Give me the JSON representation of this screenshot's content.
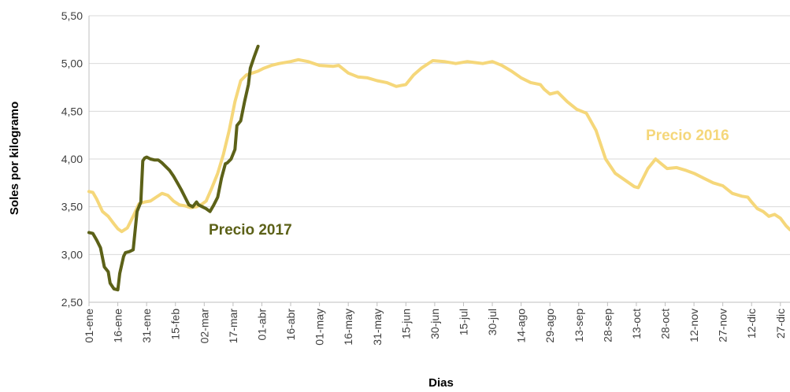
{
  "chart_data": {
    "type": "line",
    "title": "",
    "xlabel": "Dias",
    "ylabel": "Soles por kilogramo",
    "ylim": [
      2.5,
      5.5
    ],
    "yticks": [
      2.5,
      3.0,
      3.5,
      4.0,
      4.5,
      5.0,
      5.5
    ],
    "ytick_labels": [
      "2,50",
      "3,00",
      "3,50",
      "4,00",
      "4,50",
      "5,00",
      "5,50"
    ],
    "xlim_day": [
      1,
      366
    ],
    "xtick_day": [
      1,
      16,
      31,
      46,
      61,
      76,
      91,
      106,
      121,
      136,
      151,
      166,
      181,
      196,
      211,
      226,
      241,
      256,
      271,
      286,
      301,
      316,
      331,
      346,
      361
    ],
    "xtick_labels": [
      "01-ene",
      "16-ene",
      "31-ene",
      "15-feb",
      "02-mar",
      "17-mar",
      "01-abr",
      "16-abr",
      "01-may",
      "16-may",
      "31-may",
      "15-jun",
      "30-jun",
      "15-jul",
      "30-jul",
      "14-ago",
      "29-ago",
      "13-sep",
      "28-sep",
      "13-oct",
      "28-oct",
      "12-nov",
      "27-nov",
      "12-dic",
      "27-dic"
    ],
    "grid": "horizontal",
    "series": [
      {
        "name": "Precio 2016",
        "color": "#F5D77A",
        "x": [
          1,
          3,
          5,
          8,
          11,
          14,
          16,
          18,
          21,
          24,
          27,
          30,
          33,
          36,
          39,
          42,
          45,
          48,
          51,
          54,
          57,
          60,
          62,
          65,
          68,
          71,
          74,
          77,
          80,
          83,
          86,
          89,
          92,
          96,
          100,
          106,
          110,
          115,
          121,
          128,
          131,
          136,
          141,
          146,
          151,
          156,
          161,
          166,
          170,
          174,
          180,
          186,
          192,
          198,
          202,
          206,
          211,
          216,
          221,
          226,
          231,
          236,
          238,
          241,
          245,
          250,
          255,
          260,
          265,
          270,
          275,
          280,
          285,
          287,
          292,
          296,
          299,
          302,
          307,
          312,
          316,
          321,
          326,
          331,
          336,
          341,
          344,
          346,
          349,
          352,
          355,
          358,
          361,
          364,
          366
        ],
        "y": [
          3.66,
          3.65,
          3.58,
          3.45,
          3.4,
          3.32,
          3.27,
          3.24,
          3.28,
          3.4,
          3.53,
          3.55,
          3.56,
          3.6,
          3.64,
          3.62,
          3.56,
          3.52,
          3.51,
          3.49,
          3.5,
          3.53,
          3.56,
          3.7,
          3.85,
          4.05,
          4.3,
          4.6,
          4.82,
          4.88,
          4.9,
          4.92,
          4.95,
          4.98,
          5.0,
          5.02,
          5.04,
          5.02,
          4.98,
          4.97,
          4.98,
          4.9,
          4.86,
          4.85,
          4.82,
          4.8,
          4.76,
          4.78,
          4.88,
          4.95,
          5.03,
          5.02,
          5.0,
          5.02,
          5.01,
          5.0,
          5.02,
          4.98,
          4.92,
          4.85,
          4.8,
          4.78,
          4.73,
          4.68,
          4.7,
          4.6,
          4.52,
          4.48,
          4.3,
          4.0,
          3.85,
          3.78,
          3.71,
          3.7,
          3.9,
          4.0,
          3.95,
          3.9,
          3.91,
          3.88,
          3.85,
          3.8,
          3.75,
          3.72,
          3.64,
          3.61,
          3.6,
          3.55,
          3.48,
          3.45,
          3.4,
          3.42,
          3.38,
          3.3,
          3.26
        ]
      },
      {
        "name": "Precio 2017",
        "color": "#5C6118",
        "x": [
          1,
          3,
          5,
          7,
          9,
          11,
          12,
          14,
          16,
          17,
          19,
          20,
          22,
          24,
          26,
          28,
          29,
          30,
          31,
          33,
          35,
          37,
          39,
          41,
          43,
          45,
          47,
          49,
          51,
          53,
          55,
          57,
          58,
          60,
          62,
          64,
          66,
          68,
          70,
          72,
          73,
          75,
          77,
          78,
          80,
          82,
          84,
          85,
          87,
          89
        ],
        "y": [
          3.23,
          3.22,
          3.15,
          3.07,
          2.87,
          2.82,
          2.7,
          2.64,
          2.63,
          2.8,
          2.98,
          3.02,
          3.03,
          3.05,
          3.45,
          3.55,
          3.98,
          4.01,
          4.02,
          4.0,
          3.99,
          3.99,
          3.96,
          3.92,
          3.88,
          3.82,
          3.75,
          3.68,
          3.6,
          3.52,
          3.5,
          3.55,
          3.52,
          3.5,
          3.48,
          3.45,
          3.52,
          3.6,
          3.8,
          3.95,
          3.96,
          4.0,
          4.1,
          4.35,
          4.4,
          4.6,
          4.78,
          4.95,
          5.07,
          5.18
        ]
      }
    ]
  }
}
